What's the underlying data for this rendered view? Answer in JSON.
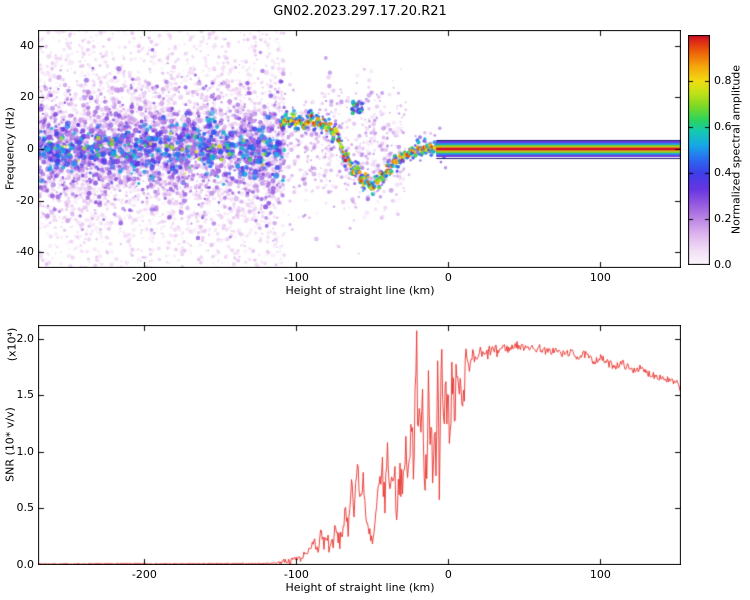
{
  "title": "GN02.2023.297.17.20.R21",
  "colors": {
    "axis": "#000000",
    "background": "#ffffff",
    "snr_line": "#e8322c"
  },
  "chart_data": [
    {
      "type": "heatmap",
      "panel": "spectrogram",
      "xlabel": "Height of straight line (km)",
      "ylabel": "Frequency (Hz)",
      "xlim": [
        -270,
        153
      ],
      "ylim": [
        -46,
        46
      ],
      "xticks": [
        {
          "v": -200,
          "label": "-200"
        },
        {
          "v": -100,
          "label": "-100"
        },
        {
          "v": 0,
          "label": "0"
        },
        {
          "v": 100,
          "label": "100"
        }
      ],
      "yticks": [
        {
          "v": 40,
          "label": "40"
        },
        {
          "v": 20,
          "label": "20"
        },
        {
          "v": 0,
          "label": "0"
        },
        {
          "v": -20,
          "label": "-20"
        },
        {
          "v": -40,
          "label": "-40"
        }
      ],
      "colorbar": {
        "label": "Normalized spectral amplitude",
        "range": [
          0,
          1
        ],
        "ticks": [
          {
            "v": 0.0,
            "label": "0.0"
          },
          {
            "v": 0.2,
            "label": "0.2"
          },
          {
            "v": 0.4,
            "label": "0.4"
          },
          {
            "v": 0.6,
            "label": "0.6"
          },
          {
            "v": 0.8,
            "label": "0.8"
          }
        ],
        "stops": [
          {
            "v": 0.0,
            "c": "#fcf6fd"
          },
          {
            "v": 0.06,
            "c": "#f3e0f6"
          },
          {
            "v": 0.13,
            "c": "#dfb7ee"
          },
          {
            "v": 0.2,
            "c": "#bb86e4"
          },
          {
            "v": 0.27,
            "c": "#9256e0"
          },
          {
            "v": 0.33,
            "c": "#6636e2"
          },
          {
            "v": 0.4,
            "c": "#3f3ee8"
          },
          {
            "v": 0.46,
            "c": "#2a6cf0"
          },
          {
            "v": 0.52,
            "c": "#17a8e6"
          },
          {
            "v": 0.58,
            "c": "#15c9b4"
          },
          {
            "v": 0.63,
            "c": "#2bd45e"
          },
          {
            "v": 0.69,
            "c": "#7dd926"
          },
          {
            "v": 0.75,
            "c": "#c4e218"
          },
          {
            "v": 0.8,
            "c": "#f2dc12"
          },
          {
            "v": 0.86,
            "c": "#f5a90d"
          },
          {
            "v": 0.91,
            "c": "#f07309"
          },
          {
            "v": 0.96,
            "c": "#e2390f"
          },
          {
            "v": 1.0,
            "c": "#cb0c2c"
          }
        ]
      },
      "noise_field": {
        "x_range": [
          -270,
          -108
        ],
        "seed": 42,
        "layers": [
          {
            "count": 3000,
            "y_sigma": 30,
            "amp_range": [
              0.02,
              0.12
            ],
            "r_range": [
              0.8,
              2.2
            ]
          },
          {
            "count": 1900,
            "y_sigma": 12,
            "amp_range": [
              0.08,
              0.3
            ],
            "r_range": [
              1.0,
              2.6
            ]
          },
          {
            "count": 750,
            "y_sigma": 5,
            "amp_range": [
              0.2,
              0.55
            ],
            "r_range": [
              1.2,
              3.0
            ]
          },
          {
            "count": 65,
            "y_sigma": 3,
            "amp_range": [
              0.5,
              0.8
            ],
            "r_range": [
              1.2,
              2.4
            ]
          }
        ]
      },
      "mid_noise": {
        "x_range": [
          -108,
          -28
        ],
        "count": 550,
        "y_sigma": 13,
        "amp_range": [
          0.03,
          0.22
        ]
      },
      "trace": [
        [
          -110,
          9
        ],
        [
          -107,
          12
        ],
        [
          -105,
          10
        ],
        [
          -102,
          13
        ],
        [
          -100,
          9
        ],
        [
          -97,
          12
        ],
        [
          -95,
          8
        ],
        [
          -92,
          11
        ],
        [
          -90,
          13
        ],
        [
          -88,
          9
        ],
        [
          -86,
          12
        ],
        [
          -84,
          8
        ],
        [
          -82,
          11
        ],
        [
          -80,
          7
        ],
        [
          -78,
          10
        ],
        [
          -76,
          5
        ],
        [
          -74,
          8
        ],
        [
          -72,
          3
        ],
        [
          -70,
          0
        ],
        [
          -68,
          -4
        ],
        [
          -66,
          -2
        ],
        [
          -64,
          -7
        ],
        [
          -62,
          -10
        ],
        [
          -60,
          -6
        ],
        [
          -58,
          -11
        ],
        [
          -56,
          -14
        ],
        [
          -54,
          -10
        ],
        [
          -52,
          -14
        ],
        [
          -50,
          -16
        ],
        [
          -48,
          -12
        ],
        [
          -46,
          -14
        ],
        [
          -44,
          -9
        ],
        [
          -42,
          -11
        ],
        [
          -40,
          -7
        ],
        [
          -38,
          -9
        ],
        [
          -36,
          -4
        ],
        [
          -34,
          -6
        ],
        [
          -32,
          -2
        ],
        [
          -30,
          -4
        ],
        [
          -28,
          -1
        ],
        [
          -26,
          -3
        ],
        [
          -24,
          0
        ],
        [
          -22,
          -2
        ],
        [
          -20,
          1
        ],
        [
          -18,
          -1
        ],
        [
          -16,
          1
        ],
        [
          -14,
          0
        ],
        [
          -12,
          1
        ],
        [
          -10,
          0
        ],
        [
          -8,
          0
        ],
        [
          -6,
          0
        ],
        [
          -4,
          0
        ],
        [
          -2,
          0
        ],
        [
          0,
          0
        ]
      ],
      "upper_blob": {
        "x": -60,
        "y": 16,
        "points": 40,
        "spread": 4
      },
      "flat_band": {
        "x_range": [
          -8,
          153
        ],
        "y": 0,
        "half_widths": [
          3.1,
          2.3,
          1.6,
          0.95,
          0.5
        ],
        "amps": [
          0.32,
          0.5,
          0.68,
          0.85,
          1.0
        ],
        "edge_offset": 3.4,
        "edge_color": "#1c1c70"
      }
    },
    {
      "type": "line",
      "panel": "snr",
      "xlabel": "Height of straight line (km)",
      "ylabel": "SNR (10* v/v)",
      "scale_label": "(x10⁴)",
      "xlim": [
        -270,
        153
      ],
      "ylim": [
        0,
        2.12
      ],
      "line_color": "#e8322c",
      "sample_step": 0.55,
      "xticks": [
        {
          "v": -200,
          "label": "-200"
        },
        {
          "v": -100,
          "label": "-100"
        },
        {
          "v": 0,
          "label": "0"
        },
        {
          "v": 100,
          "label": "100"
        }
      ],
      "yticks": [
        {
          "v": 0.0,
          "label": "0.0"
        },
        {
          "v": 0.5,
          "label": "0.5"
        },
        {
          "v": 1.0,
          "label": "1.0"
        },
        {
          "v": 1.5,
          "label": "1.5"
        },
        {
          "v": 2.0,
          "label": "2.0"
        }
      ],
      "points": [
        [
          -270,
          0.01
        ],
        [
          -240,
          0.01
        ],
        [
          -210,
          0.012
        ],
        [
          -180,
          0.01
        ],
        [
          -150,
          0.012
        ],
        [
          -130,
          0.012
        ],
        [
          -118,
          0.015
        ],
        [
          -112,
          0.02
        ],
        [
          -108,
          0.04
        ],
        [
          -104,
          0.03
        ],
        [
          -100,
          0.07
        ],
        [
          -97,
          0.05
        ],
        [
          -94,
          0.12
        ],
        [
          -91,
          0.08
        ],
        [
          -88,
          0.2
        ],
        [
          -86,
          0.12
        ],
        [
          -84,
          0.3
        ],
        [
          -82,
          0.18
        ],
        [
          -80,
          0.25
        ],
        [
          -78,
          0.15
        ],
        [
          -76,
          0.22
        ],
        [
          -74,
          0.3
        ],
        [
          -72,
          0.2
        ],
        [
          -70,
          0.28
        ],
        [
          -68,
          0.45
        ],
        [
          -66,
          0.3
        ],
        [
          -64,
          0.75
        ],
        [
          -62,
          0.5
        ],
        [
          -60,
          0.9
        ],
        [
          -58,
          0.55
        ],
        [
          -56,
          0.8
        ],
        [
          -54,
          0.35
        ],
        [
          -52,
          0.25
        ],
        [
          -50,
          0.15
        ],
        [
          -48,
          0.35
        ],
        [
          -46,
          0.6
        ],
        [
          -44,
          0.9
        ],
        [
          -42,
          0.55
        ],
        [
          -40,
          1.0
        ],
        [
          -38,
          0.65
        ],
        [
          -36,
          0.9
        ],
        [
          -34,
          0.5
        ],
        [
          -32,
          0.85
        ],
        [
          -30,
          0.6
        ],
        [
          -28,
          1.05
        ],
        [
          -26,
          0.7
        ],
        [
          -24,
          1.3
        ],
        [
          -23,
          0.9
        ],
        [
          -22,
          1.6
        ],
        [
          -21,
          2.05
        ],
        [
          -20,
          1.2
        ],
        [
          -19,
          1.75
        ],
        [
          -18,
          0.8
        ],
        [
          -17,
          1.5
        ],
        [
          -16,
          0.45
        ],
        [
          -15,
          1.25
        ],
        [
          -14,
          0.85
        ],
        [
          -13,
          1.9
        ],
        [
          -12,
          1.05
        ],
        [
          -11,
          1.55
        ],
        [
          -10,
          0.7
        ],
        [
          -9,
          1.4
        ],
        [
          -8,
          1.0
        ],
        [
          -7,
          1.7
        ],
        [
          -6,
          0.55
        ],
        [
          -5,
          1.35
        ],
        [
          -4,
          1.75
        ],
        [
          -3,
          0.85
        ],
        [
          -2,
          1.5
        ],
        [
          -1,
          1.1
        ],
        [
          0,
          1.65
        ],
        [
          1,
          0.9
        ],
        [
          2,
          1.55
        ],
        [
          3,
          1.85
        ],
        [
          4,
          1.15
        ],
        [
          5,
          1.8
        ],
        [
          6,
          1.35
        ],
        [
          7,
          1.9
        ],
        [
          8,
          1.5
        ],
        [
          9,
          1.75
        ],
        [
          10,
          1.6
        ],
        [
          12,
          1.8
        ],
        [
          14,
          1.7
        ],
        [
          16,
          1.85
        ],
        [
          18,
          1.78
        ],
        [
          20,
          1.88
        ],
        [
          24,
          1.84
        ],
        [
          28,
          1.9
        ],
        [
          32,
          1.88
        ],
        [
          36,
          1.93
        ],
        [
          40,
          1.9
        ],
        [
          44,
          1.95
        ],
        [
          48,
          1.92
        ],
        [
          52,
          1.94
        ],
        [
          56,
          1.9
        ],
        [
          60,
          1.92
        ],
        [
          65,
          1.88
        ],
        [
          70,
          1.9
        ],
        [
          75,
          1.86
        ],
        [
          80,
          1.88
        ],
        [
          85,
          1.84
        ],
        [
          90,
          1.86
        ],
        [
          95,
          1.8
        ],
        [
          100,
          1.83
        ],
        [
          105,
          1.78
        ],
        [
          110,
          1.76
        ],
        [
          115,
          1.78
        ],
        [
          120,
          1.72
        ],
        [
          125,
          1.74
        ],
        [
          130,
          1.7
        ],
        [
          135,
          1.68
        ],
        [
          140,
          1.66
        ],
        [
          145,
          1.63
        ],
        [
          150,
          1.6
        ],
        [
          153,
          1.57
        ]
      ],
      "jitter": {
        "seed": 7,
        "regions": [
          {
            "x_range": [
              -270,
              -112
            ],
            "amp": 0.004
          },
          {
            "x_range": [
              -112,
              -92
            ],
            "amp": 0.025
          },
          {
            "x_range": [
              -92,
              -52
            ],
            "amp": 0.09
          },
          {
            "x_range": [
              -52,
              -27
            ],
            "amp": 0.16
          },
          {
            "x_range": [
              -27,
              12
            ],
            "amp": 0.32
          },
          {
            "x_range": [
              12,
              32
            ],
            "amp": 0.06
          },
          {
            "x_range": [
              32,
              153
            ],
            "amp": 0.035
          }
        ]
      }
    }
  ]
}
